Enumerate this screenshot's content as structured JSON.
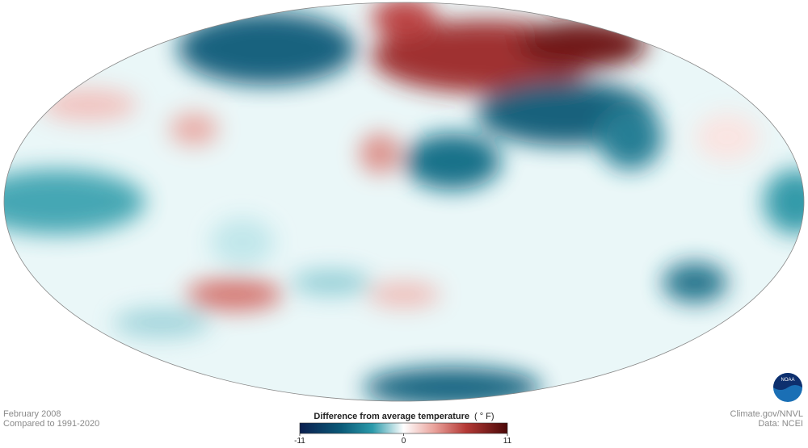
{
  "footer": {
    "date": "February 2008",
    "baseline": "Compared to 1991-2020",
    "credit": "Climate.gov/NNVL",
    "source": "Data: NCEI"
  },
  "legend": {
    "title": "Difference from average temperature",
    "unit": "( ° F)",
    "range": [
      -11,
      11
    ],
    "ticks": [
      -11,
      0,
      11
    ]
  }
}
